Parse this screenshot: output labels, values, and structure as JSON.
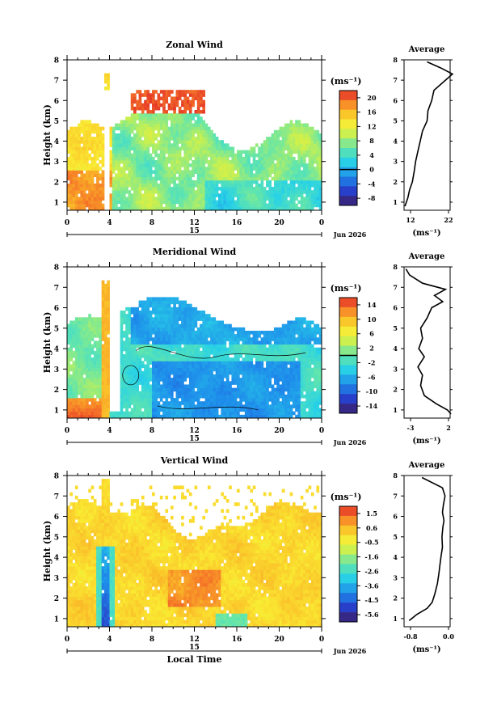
{
  "panels": [
    {
      "id": "zonal",
      "title": "Zonal Wind",
      "ylabel": "Height (km)",
      "cbar_unit": "(ms⁻¹)",
      "cbar_ticks": [
        "20",
        "16",
        "12",
        "8",
        "4",
        "0",
        "-4",
        "-8"
      ],
      "avg_title": "Average",
      "avg_xticks": [
        "12",
        "22"
      ],
      "avg_unit": "(ms⁻¹)"
    },
    {
      "id": "meridional",
      "title": "Meridional Wind",
      "ylabel": "Height (km)",
      "cbar_unit": "(ms⁻¹)",
      "cbar_ticks": [
        "14",
        "10",
        "6",
        "2",
        "-2",
        "-6",
        "-10",
        "-14"
      ],
      "avg_title": "Average",
      "avg_xticks": [
        "-3",
        "2"
      ],
      "avg_unit": "(ms⁻¹)"
    },
    {
      "id": "vertical",
      "title": "Vertical Wind",
      "ylabel": "Height (km)",
      "cbar_unit": "(ms⁻¹)",
      "cbar_ticks": [
        "1.5",
        "0.6",
        "-0.5",
        "-1.6",
        "-2.6",
        "-3.6",
        "-4.5",
        "-5.6"
      ],
      "avg_title": "Average",
      "avg_xticks": [
        "-0.8",
        "0.0"
      ],
      "avg_unit": "(ms⁻¹)"
    }
  ],
  "xaxis": {
    "ticks": [
      "0",
      "4",
      "8",
      "12",
      "16",
      "20",
      "0"
    ],
    "date_label": "15",
    "month_label": "Jun 2026",
    "xlabel": "Local Time"
  },
  "yaxis_ticks": [
    "1",
    "2",
    "3",
    "4",
    "5",
    "6",
    "7",
    "8"
  ],
  "chart_data": [
    {
      "type": "heatmap",
      "title": "Zonal Wind",
      "xlabel": "",
      "ylabel": "Height (km)",
      "xlim_hours": [
        0,
        24
      ],
      "ylim_km": [
        0.6,
        8.0
      ],
      "colorbar_range": [
        -10,
        22
      ],
      "colorbar_zero_line": 0,
      "approx_field": "mostly 8-16 m/s; 16-20 m/s below 2.5 km from 0-4 LT; up to 20+ m/s around 5.4-6.5 km between 6 and 13 LT",
      "profile": {
        "type": "line",
        "title": "Average",
        "xlim": [
          12,
          22
        ],
        "heights_km": [
          0.8,
          1.2,
          1.6,
          2.0,
          2.5,
          3.0,
          3.5,
          4.0,
          4.5,
          5.0,
          5.5,
          6.0,
          6.5,
          7.0,
          7.3,
          7.6,
          7.9
        ],
        "values": [
          12.2,
          12.8,
          13.2,
          13.8,
          14.2,
          14.5,
          15.0,
          15.5,
          16.0,
          17.0,
          17.2,
          18.0,
          18.5,
          21.0,
          22.5,
          20.0,
          17.0
        ]
      }
    },
    {
      "type": "heatmap",
      "title": "Meridional Wind",
      "xlabel": "",
      "ylabel": "Height (km)",
      "xlim_hours": [
        0,
        24
      ],
      "ylim_km": [
        0.6,
        8.0
      ],
      "colorbar_range": [
        -16,
        16
      ],
      "colorbar_zero_line": 0,
      "approx_field": "southward 0 to -10 m/s in most daytime regions; northward up to 14 m/s below 1.5 km near 0-4 LT; zero contour drawn",
      "profile": {
        "type": "line",
        "title": "Average",
        "xlim": [
          -3,
          2
        ],
        "heights_km": [
          0.8,
          1.0,
          1.3,
          1.7,
          2.2,
          2.7,
          3.1,
          3.6,
          4.0,
          4.5,
          5.0,
          5.5,
          6.0,
          6.3,
          6.6,
          6.9,
          7.2,
          7.6,
          7.9
        ],
        "values": [
          2.1,
          1.7,
          0.5,
          -0.8,
          -1.2,
          -1.0,
          -1.5,
          -0.8,
          -1.4,
          -1.0,
          -1.2,
          -0.5,
          0.0,
          1.2,
          0.3,
          1.5,
          -1.0,
          -2.4,
          -2.8
        ]
      }
    },
    {
      "type": "heatmap",
      "title": "Vertical Wind",
      "xlabel": "Local Time",
      "ylabel": "Height (km)",
      "xlim_hours": [
        0,
        24
      ],
      "ylim_km": [
        0.6,
        8.0
      ],
      "colorbar_range": [
        -6,
        2
      ],
      "approx_field": "mostly -0.5 to 0.6 m/s; strong downdraft to -5.6 m/s near 3.5-4 LT below 4.5 km; updrafts to 1.5 m/s near 10-14 LT at 2-3.5 km",
      "profile": {
        "type": "line",
        "title": "Average",
        "xlim": [
          -0.8,
          0.1
        ],
        "heights_km": [
          0.9,
          1.2,
          1.5,
          1.8,
          2.2,
          2.7,
          3.2,
          3.6,
          4.0,
          4.5,
          5.0,
          5.5,
          5.8,
          6.2,
          6.6,
          7.0,
          7.4,
          7.9
        ],
        "values": [
          -0.7,
          -0.55,
          -0.35,
          -0.25,
          -0.2,
          -0.15,
          -0.12,
          -0.1,
          -0.08,
          -0.05,
          -0.06,
          -0.04,
          -0.02,
          -0.05,
          -0.03,
          0.0,
          -0.05,
          -0.45
        ]
      }
    }
  ]
}
